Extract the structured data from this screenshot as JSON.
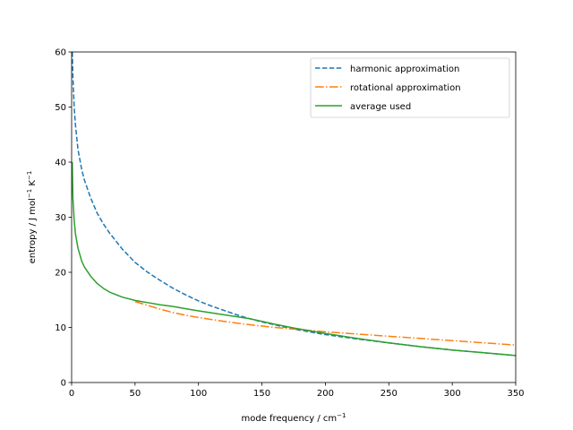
{
  "chart_data": {
    "type": "line",
    "title": "",
    "xlabel": {
      "text": "mode frequency / cm",
      "sup": "−1"
    },
    "ylabel": {
      "parts": [
        {
          "t": "entropy / J mol"
        },
        {
          "t": "−1",
          "sup": true
        },
        {
          "t": " K"
        },
        {
          "t": "−1",
          "sup": true
        }
      ]
    },
    "xlim": [
      0,
      350
    ],
    "ylim": [
      0,
      60
    ],
    "xticks": [
      0,
      50,
      100,
      150,
      200,
      250,
      300,
      350
    ],
    "yticks": [
      0,
      10,
      20,
      30,
      40,
      50,
      60
    ],
    "grid": false,
    "legend_position": "top-right",
    "series": [
      {
        "name": "harmonic approximation",
        "color": "#1f77b4",
        "dash": "dashed",
        "points": [
          [
            0.5,
            60
          ],
          [
            1,
            55.5
          ],
          [
            2,
            50
          ],
          [
            3,
            46.8
          ],
          [
            5,
            42.3
          ],
          [
            8,
            38.6
          ],
          [
            10,
            36.8
          ],
          [
            15,
            33.5
          ],
          [
            20,
            30.8
          ],
          [
            25,
            28.8
          ],
          [
            30,
            27.1
          ],
          [
            40,
            24.2
          ],
          [
            50,
            21.8
          ],
          [
            60,
            20.0
          ],
          [
            70,
            18.5
          ],
          [
            80,
            17.1
          ],
          [
            90,
            15.9
          ],
          [
            100,
            14.8
          ],
          [
            110,
            13.9
          ],
          [
            120,
            13.1
          ],
          [
            130,
            12.3
          ],
          [
            140,
            11.6
          ],
          [
            150,
            11.0
          ],
          [
            175,
            9.7
          ],
          [
            200,
            8.7
          ],
          [
            225,
            7.9
          ],
          [
            250,
            7.2
          ],
          [
            275,
            6.5
          ],
          [
            300,
            5.9
          ],
          [
            325,
            5.4
          ],
          [
            350,
            4.9
          ]
        ]
      },
      {
        "name": "rotational approximation",
        "color": "#ff7f0e",
        "dash": "dashdot",
        "points": [
          [
            50,
            14.7
          ],
          [
            60,
            14.0
          ],
          [
            70,
            13.3
          ],
          [
            80,
            12.7
          ],
          [
            90,
            12.2
          ],
          [
            100,
            11.8
          ],
          [
            120,
            11.1
          ],
          [
            140,
            10.5
          ],
          [
            160,
            10.0
          ],
          [
            180,
            9.6
          ],
          [
            200,
            9.2
          ],
          [
            225,
            8.8
          ],
          [
            250,
            8.4
          ],
          [
            275,
            8.0
          ],
          [
            300,
            7.6
          ],
          [
            325,
            7.2
          ],
          [
            350,
            6.8
          ]
        ]
      },
      {
        "name": "average used",
        "color": "#2ca02c",
        "dash": "solid",
        "points": [
          [
            0.5,
            40
          ],
          [
            1,
            33.5
          ],
          [
            2,
            29.5
          ],
          [
            3,
            27.0
          ],
          [
            5,
            24.4
          ],
          [
            8,
            22.0
          ],
          [
            10,
            21.0
          ],
          [
            15,
            19.3
          ],
          [
            20,
            18.0
          ],
          [
            25,
            17.1
          ],
          [
            30,
            16.4
          ],
          [
            40,
            15.5
          ],
          [
            50,
            14.9
          ],
          [
            60,
            14.5
          ],
          [
            70,
            14.1
          ],
          [
            80,
            13.8
          ],
          [
            90,
            13.4
          ],
          [
            100,
            13.0
          ],
          [
            120,
            12.3
          ],
          [
            140,
            11.6
          ],
          [
            150,
            11.1
          ],
          [
            160,
            10.6
          ],
          [
            175,
            9.9
          ],
          [
            200,
            8.9
          ],
          [
            225,
            8.0
          ],
          [
            250,
            7.2
          ],
          [
            275,
            6.5
          ],
          [
            300,
            5.9
          ],
          [
            325,
            5.4
          ],
          [
            350,
            4.9
          ]
        ]
      }
    ]
  }
}
